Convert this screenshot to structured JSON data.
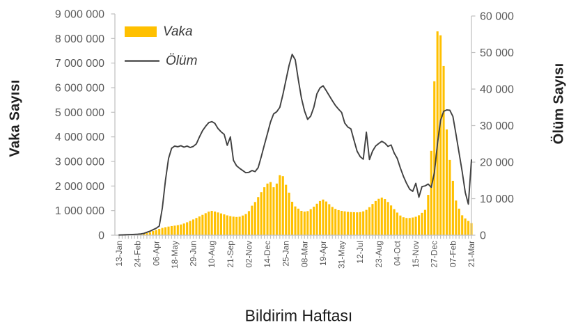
{
  "chart_data": {
    "type": "combo-bar-line",
    "x_title": "Bildirim Haftası",
    "x_tick_every": 6,
    "n_weeks": 115,
    "x_tick_labels": [
      "13-Jan",
      "24-Feb",
      "06-Apr",
      "18-May",
      "29-Jun",
      "10-Aug",
      "21-Sep",
      "02-Nov",
      "14-Dec",
      "25-Jan",
      "08-Mar",
      "19-Apr",
      "31-May",
      "12-Jul",
      "23-Aug",
      "04-Oct",
      "15-Nov",
      "27-Dec",
      "07-Feb",
      "21-Mar"
    ],
    "y_left": {
      "title": "Vaka Sayısı",
      "min": 0,
      "max": 9000000,
      "tick_step": 1000000
    },
    "y_right": {
      "title": "Ölüm Sayısı",
      "min": 0,
      "max": 60000,
      "tick_step": 10000
    },
    "grid": "none",
    "legend": {
      "position": "top-left-inside",
      "items": [
        {
          "label": "Vaka",
          "swatch": "bar"
        },
        {
          "label": "Ölüm",
          "swatch": "line"
        }
      ]
    },
    "series": [
      {
        "name": "Vaka",
        "type": "bar",
        "axis": "left",
        "color": "#FFC000",
        "values": [
          8000,
          12000,
          15000,
          18000,
          22000,
          28000,
          35000,
          45000,
          60000,
          85000,
          120000,
          170000,
          215000,
          255000,
          295000,
          325000,
          350000,
          370000,
          390000,
          410000,
          435000,
          475000,
          525000,
          580000,
          640000,
          700000,
          762000,
          828000,
          895000,
          958000,
          990000,
          962000,
          925000,
          886000,
          846000,
          806000,
          775000,
          754000,
          742000,
          752000,
          800000,
          860000,
          980000,
          1200000,
          1350000,
          1550000,
          1750000,
          1950000,
          2100000,
          2160000,
          1950000,
          2100000,
          2440000,
          2400000,
          2050000,
          1730000,
          1360000,
          1170000,
          1080000,
          990000,
          960000,
          980000,
          1060000,
          1160000,
          1280000,
          1390000,
          1450000,
          1370000,
          1260000,
          1150000,
          1070000,
          1020000,
          990000,
          970000,
          950000,
          940000,
          935000,
          930000,
          940000,
          970000,
          1030000,
          1140000,
          1270000,
          1390000,
          1480000,
          1530000,
          1470000,
          1350000,
          1210000,
          1060000,
          920000,
          800000,
          730000,
          700000,
          700000,
          720000,
          750000,
          810000,
          910000,
          1030000,
          1640000,
          3430000,
          6260000,
          8290000,
          8130000,
          6880000,
          4300000,
          3060000,
          2210000,
          1410000,
          1080000,
          810000,
          680000,
          580000,
          490000
        ]
      },
      {
        "name": "Ölüm",
        "type": "line",
        "axis": "right",
        "color": "#404040",
        "values": [
          60,
          90,
          120,
          150,
          180,
          220,
          270,
          350,
          500,
          800,
          1100,
          1500,
          1900,
          2500,
          7500,
          15000,
          21000,
          23800,
          24400,
          24200,
          24500,
          24100,
          24400,
          24000,
          24300,
          25000,
          26900,
          28600,
          29800,
          30800,
          31100,
          30600,
          29200,
          28300,
          27600,
          24600,
          26900,
          20500,
          19000,
          18300,
          17700,
          17100,
          17200,
          17700,
          17400,
          18500,
          21500,
          24700,
          27800,
          31000,
          33200,
          33800,
          35000,
          38500,
          42500,
          46500,
          49500,
          48000,
          42500,
          37500,
          34000,
          31700,
          32600,
          35000,
          38700,
          40300,
          40900,
          39600,
          38200,
          36800,
          35500,
          34500,
          33600,
          30700,
          29600,
          29100,
          26000,
          23000,
          21500,
          20800,
          28200,
          20700,
          23000,
          24400,
          25100,
          25700,
          25200,
          24300,
          24700,
          22500,
          21000,
          18400,
          16100,
          14200,
          12600,
          12000,
          14200,
          10400,
          13300,
          13500,
          14000,
          13100,
          17100,
          25000,
          31400,
          33900,
          34300,
          34200,
          32500,
          27600,
          22500,
          17400,
          11700,
          8500,
          20600
        ]
      }
    ]
  },
  "colors": {
    "background": "#FFFFFF",
    "bar": "#FFC000",
    "line": "#404040",
    "axis_line": "#BFBFBF",
    "tick_label": "#595959",
    "title_text": "#1f1f1f",
    "legend_text": "#3a3a3a",
    "legend_line_swatch": "#6e6e6e"
  }
}
